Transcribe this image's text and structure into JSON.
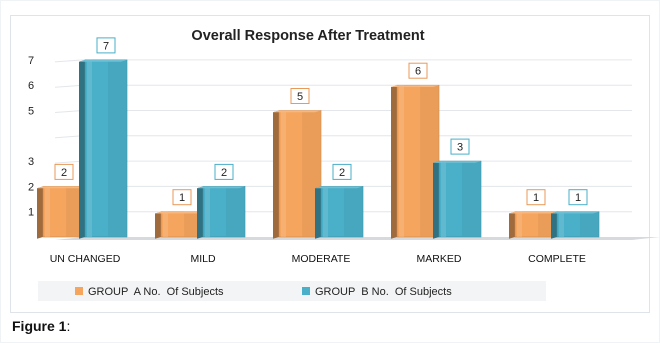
{
  "chart_data": {
    "type": "bar",
    "title": "Overall Response After Treatment",
    "categories": [
      "UN CHANGED",
      "MILD",
      "MODERATE",
      "MARKED",
      "COMPLETE"
    ],
    "series": [
      {
        "name": "GROUP  A No.  Of Subjects",
        "values": [
          2,
          1,
          5,
          6,
          1
        ],
        "color": "#f5a55e"
      },
      {
        "name": "GROUP  B No.  Of Subjects",
        "values": [
          7,
          2,
          2,
          3,
          1
        ],
        "color": "#4aafc8"
      }
    ],
    "y_ticks": [
      "1",
      "2",
      "3",
      "5",
      "6",
      "7"
    ],
    "ylim": [
      0,
      7.5
    ],
    "grid": true,
    "legend_position": "bottom"
  },
  "caption": {
    "label": "Figure 1",
    "suffix": ":"
  }
}
